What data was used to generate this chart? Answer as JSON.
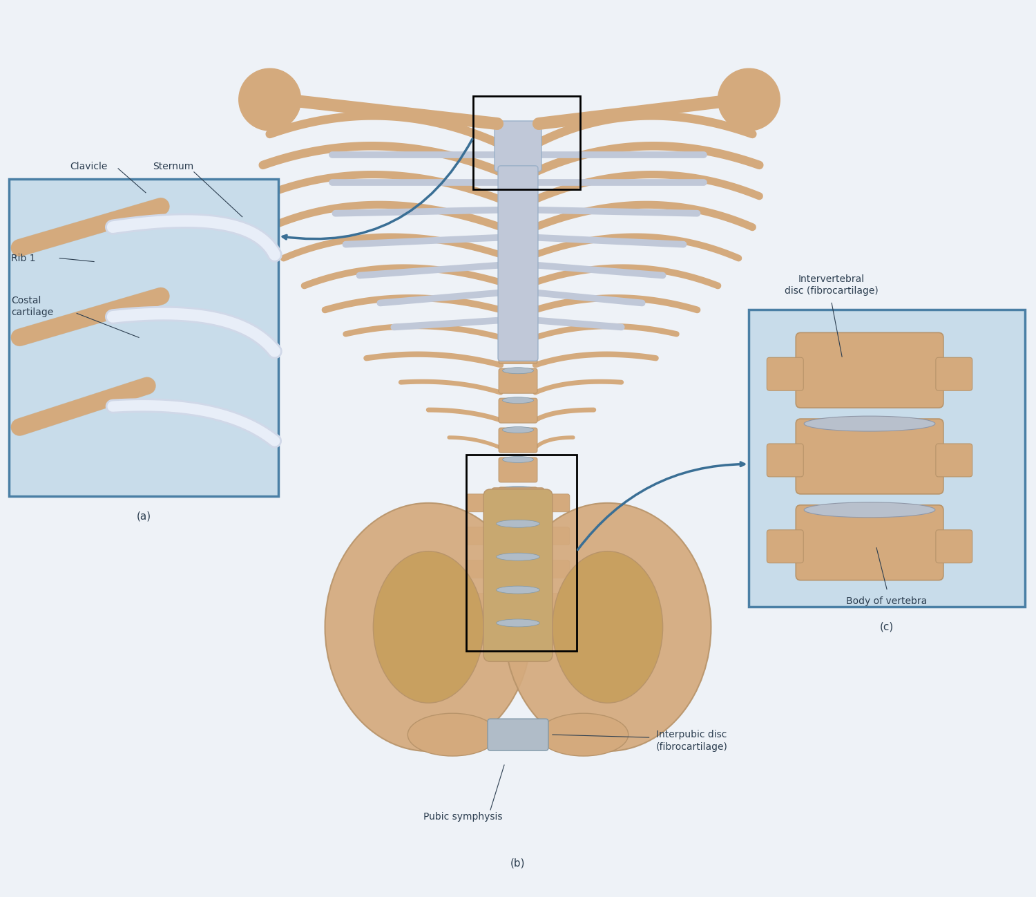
{
  "background_color": "#eef2f7",
  "fig_width": 15.0,
  "fig_height": 12.98,
  "labels": {
    "clavicle": "Clavicle",
    "sternum": "Sternum",
    "rib1": "Rib 1",
    "costal_cartilage": "Costal\ncartilage",
    "panel_a": "(a)",
    "panel_b": "(b)",
    "panel_c": "(c)",
    "intervertebral": "Intervertebral\ndisc (fibrocartilage)",
    "body_vertebra": "Body of vertebra",
    "interpubic": "Interpubic disc\n(fibrocartilage)",
    "pubic_symphysis": "Pubic symphysis"
  },
  "text_color": "#2c3e50",
  "label_fontsize": 10,
  "panel_label_fontsize": 11,
  "box_color": "#4a7fa5",
  "box_bg": "#c8dcea",
  "highlight_box_color": "#000000",
  "arrow_color": "#3a6f95",
  "bone_color": "#d4aa7d",
  "bone_edge": "#b8946a",
  "cart_color": "#c0c8d8",
  "cart_edge": "#9ab0c8",
  "disc_color": "#b0bcc8",
  "disc_edge": "#8098a8"
}
